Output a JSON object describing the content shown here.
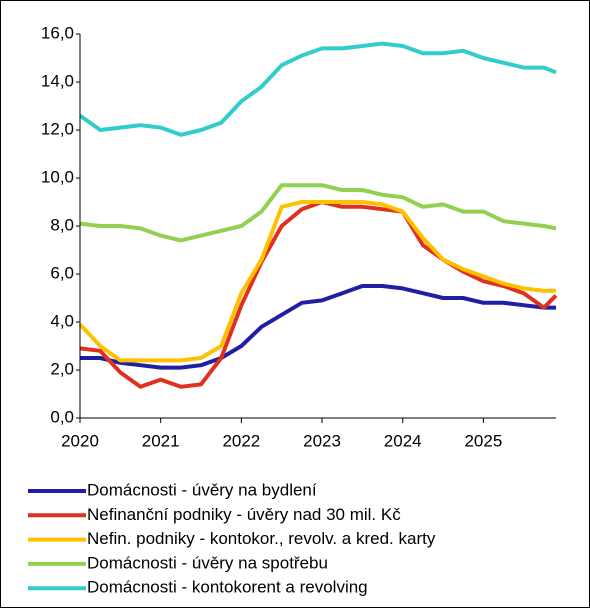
{
  "chart_data": {
    "type": "line",
    "x": [
      2020,
      2020.25,
      2020.5,
      2020.75,
      2021,
      2021.25,
      2021.5,
      2021.75,
      2022,
      2022.25,
      2022.5,
      2022.75,
      2023,
      2023.25,
      2023.5,
      2023.75,
      2024,
      2024.25,
      2024.5,
      2024.75,
      2025,
      2025.25,
      2025.5,
      2025.75,
      2025.9
    ],
    "xlim": [
      2020,
      2025.9
    ],
    "xticks": [
      2020,
      2021,
      2022,
      2023,
      2024,
      2025
    ],
    "ylim": [
      0,
      16
    ],
    "yticks": [
      {
        "value": 0,
        "label": "0,0"
      },
      {
        "value": 2,
        "label": "2,0"
      },
      {
        "value": 4,
        "label": "4,0"
      },
      {
        "value": 6,
        "label": "6,0"
      },
      {
        "value": 8,
        "label": "8,0"
      },
      {
        "value": 10,
        "label": "10,0"
      },
      {
        "value": 12,
        "label": "12,0"
      },
      {
        "value": 14,
        "label": "14,0"
      },
      {
        "value": 16,
        "label": "16,0"
      }
    ],
    "grid": false,
    "legend": "bottom",
    "series": [
      {
        "name": "Domácnosti - úvěry na bydlení",
        "color": "#1f1fa6",
        "values": [
          2.5,
          2.5,
          2.3,
          2.2,
          2.1,
          2.1,
          2.2,
          2.5,
          3.0,
          3.8,
          4.3,
          4.8,
          4.9,
          5.2,
          5.5,
          5.5,
          5.4,
          5.2,
          5.0,
          5.0,
          4.8,
          4.8,
          4.7,
          4.6,
          4.6
        ]
      },
      {
        "name": "Nefinanční podniky - úvěry nad 30 mil. Kč",
        "color": "#e0301e",
        "values": [
          2.9,
          2.8,
          1.9,
          1.3,
          1.6,
          1.3,
          1.4,
          2.5,
          4.7,
          6.5,
          8.0,
          8.7,
          9.0,
          8.8,
          8.8,
          8.7,
          8.6,
          7.2,
          6.6,
          6.1,
          5.7,
          5.5,
          5.2,
          4.6,
          5.1
        ]
      },
      {
        "name": "Nefin. podniky - kontokor., revolv. a kred. karty",
        "color": "#ffc000",
        "values": [
          3.9,
          3.0,
          2.4,
          2.4,
          2.4,
          2.4,
          2.5,
          3.0,
          5.2,
          6.6,
          8.8,
          9.0,
          9.0,
          9.0,
          9.0,
          8.9,
          8.6,
          7.5,
          6.6,
          6.2,
          5.9,
          5.6,
          5.4,
          5.3,
          5.3
        ]
      },
      {
        "name": "Domácnosti - úvěry na spotřebu",
        "color": "#92d050",
        "values": [
          8.1,
          8.0,
          8.0,
          7.9,
          7.6,
          7.4,
          7.6,
          7.8,
          8.0,
          8.6,
          9.7,
          9.7,
          9.7,
          9.5,
          9.5,
          9.3,
          9.2,
          8.8,
          8.9,
          8.6,
          8.6,
          8.2,
          8.1,
          8.0,
          7.9
        ]
      },
      {
        "name": "Domácnosti - kontokorent a revolving",
        "color": "#33cccc",
        "values": [
          12.6,
          12.0,
          12.1,
          12.2,
          12.1,
          11.8,
          12.0,
          12.3,
          13.2,
          13.8,
          14.7,
          15.1,
          15.4,
          15.4,
          15.5,
          15.6,
          15.5,
          15.2,
          15.2,
          15.3,
          15.0,
          14.8,
          14.6,
          14.6,
          14.4
        ]
      }
    ]
  }
}
